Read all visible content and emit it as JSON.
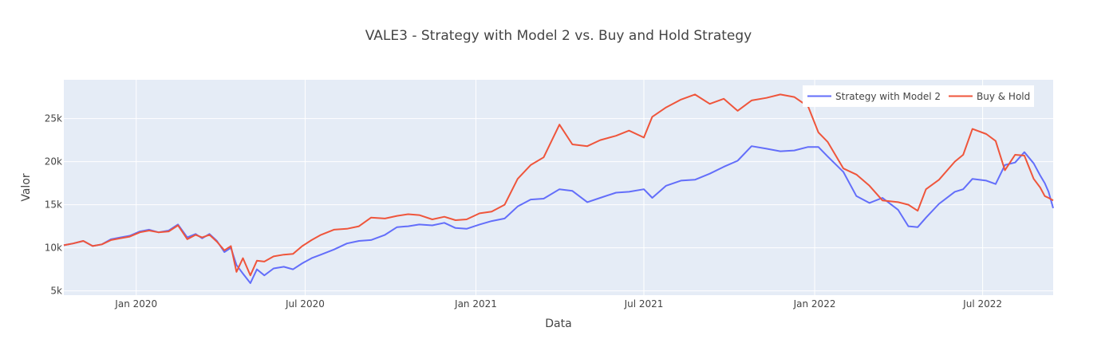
{
  "chart_data": {
    "type": "line",
    "title": "VALE3 - Strategy with Model 2 vs. Buy and Hold Strategy",
    "xlabel": "Data",
    "ylabel": "Valor",
    "x_range": [
      "2019-10-15",
      "2022-09-15"
    ],
    "ylim": [
      4500,
      29500
    ],
    "x_ticks": [
      {
        "date": "2020-01-01",
        "label": "Jan 2020"
      },
      {
        "date": "2020-07-01",
        "label": "Jul 2020"
      },
      {
        "date": "2021-01-01",
        "label": "Jan 2021"
      },
      {
        "date": "2021-07-01",
        "label": "Jul 2021"
      },
      {
        "date": "2022-01-01",
        "label": "Jan 2022"
      },
      {
        "date": "2022-07-01",
        "label": "Jul 2022"
      }
    ],
    "y_ticks": [
      {
        "value": 5000,
        "label": "5k"
      },
      {
        "value": 10000,
        "label": "10k"
      },
      {
        "value": 15000,
        "label": "15k"
      },
      {
        "value": 20000,
        "label": "20k"
      },
      {
        "value": 25000,
        "label": "25k"
      }
    ],
    "grid": true,
    "legend_position": "top-right",
    "series": [
      {
        "name": "Strategy with Model 2",
        "color": "#636efa",
        "points": [
          [
            "2019-10-15",
            10300
          ],
          [
            "2019-10-25",
            10500
          ],
          [
            "2019-11-05",
            10800
          ],
          [
            "2019-11-15",
            10200
          ],
          [
            "2019-11-25",
            10400
          ],
          [
            "2019-12-05",
            11000
          ],
          [
            "2019-12-15",
            11200
          ],
          [
            "2019-12-25",
            11400
          ],
          [
            "2020-01-05",
            11900
          ],
          [
            "2020-01-15",
            12100
          ],
          [
            "2020-01-25",
            11800
          ],
          [
            "2020-02-05",
            12000
          ],
          [
            "2020-02-15",
            12700
          ],
          [
            "2020-02-25",
            11200
          ],
          [
            "2020-03-05",
            11600
          ],
          [
            "2020-03-12",
            11100
          ],
          [
            "2020-03-20",
            11600
          ],
          [
            "2020-03-28",
            10800
          ],
          [
            "2020-04-05",
            9500
          ],
          [
            "2020-04-12",
            10000
          ],
          [
            "2020-04-18",
            8000
          ],
          [
            "2020-04-25",
            7000
          ],
          [
            "2020-05-03",
            5900
          ],
          [
            "2020-05-10",
            7500
          ],
          [
            "2020-05-18",
            6800
          ],
          [
            "2020-05-28",
            7600
          ],
          [
            "2020-06-08",
            7800
          ],
          [
            "2020-06-18",
            7500
          ],
          [
            "2020-06-28",
            8200
          ],
          [
            "2020-07-08",
            8800
          ],
          [
            "2020-07-18",
            9200
          ],
          [
            "2020-08-01",
            9800
          ],
          [
            "2020-08-15",
            10500
          ],
          [
            "2020-08-28",
            10800
          ],
          [
            "2020-09-10",
            10900
          ],
          [
            "2020-09-25",
            11500
          ],
          [
            "2020-10-08",
            12400
          ],
          [
            "2020-10-20",
            12500
          ],
          [
            "2020-11-01",
            12700
          ],
          [
            "2020-11-15",
            12600
          ],
          [
            "2020-11-28",
            12900
          ],
          [
            "2020-12-10",
            12300
          ],
          [
            "2020-12-22",
            12200
          ],
          [
            "2021-01-05",
            12700
          ],
          [
            "2021-01-18",
            13100
          ],
          [
            "2021-02-01",
            13400
          ],
          [
            "2021-02-15",
            14800
          ],
          [
            "2021-03-01",
            15600
          ],
          [
            "2021-03-15",
            15700
          ],
          [
            "2021-04-01",
            16800
          ],
          [
            "2021-04-15",
            16600
          ],
          [
            "2021-05-01",
            15300
          ],
          [
            "2021-05-15",
            15800
          ],
          [
            "2021-06-01",
            16400
          ],
          [
            "2021-06-15",
            16500
          ],
          [
            "2021-07-01",
            16800
          ],
          [
            "2021-07-10",
            15800
          ],
          [
            "2021-07-25",
            17200
          ],
          [
            "2021-08-10",
            17800
          ],
          [
            "2021-08-25",
            17900
          ],
          [
            "2021-09-10",
            18600
          ],
          [
            "2021-09-25",
            19400
          ],
          [
            "2021-10-10",
            20100
          ],
          [
            "2021-10-25",
            21800
          ],
          [
            "2021-11-10",
            21500
          ],
          [
            "2021-11-25",
            21200
          ],
          [
            "2021-12-10",
            21300
          ],
          [
            "2021-12-25",
            21700
          ],
          [
            "2022-01-05",
            21700
          ],
          [
            "2022-01-15",
            20600
          ],
          [
            "2022-02-01",
            18800
          ],
          [
            "2022-02-15",
            16000
          ],
          [
            "2022-03-01",
            15200
          ],
          [
            "2022-03-15",
            15800
          ],
          [
            "2022-04-01",
            14400
          ],
          [
            "2022-04-12",
            12500
          ],
          [
            "2022-04-22",
            12400
          ],
          [
            "2022-05-01",
            13500
          ],
          [
            "2022-05-15",
            15100
          ],
          [
            "2022-06-01",
            16500
          ],
          [
            "2022-06-10",
            16800
          ],
          [
            "2022-06-20",
            18000
          ],
          [
            "2022-07-05",
            17800
          ],
          [
            "2022-07-15",
            17400
          ],
          [
            "2022-07-25",
            19600
          ],
          [
            "2022-08-05",
            19900
          ],
          [
            "2022-08-15",
            21100
          ],
          [
            "2022-08-25",
            19800
          ],
          [
            "2022-09-01",
            18400
          ],
          [
            "2022-09-06",
            17500
          ],
          [
            "2022-09-10",
            16500
          ],
          [
            "2022-09-15",
            14600
          ]
        ]
      },
      {
        "name": "Buy & Hold",
        "color": "#ef553b",
        "points": [
          [
            "2019-10-15",
            10300
          ],
          [
            "2019-10-25",
            10500
          ],
          [
            "2019-11-05",
            10800
          ],
          [
            "2019-11-15",
            10200
          ],
          [
            "2019-11-25",
            10400
          ],
          [
            "2019-12-05",
            10900
          ],
          [
            "2019-12-15",
            11100
          ],
          [
            "2019-12-25",
            11300
          ],
          [
            "2020-01-05",
            11800
          ],
          [
            "2020-01-15",
            12000
          ],
          [
            "2020-01-25",
            11800
          ],
          [
            "2020-02-05",
            11900
          ],
          [
            "2020-02-15",
            12600
          ],
          [
            "2020-02-25",
            11000
          ],
          [
            "2020-03-05",
            11500
          ],
          [
            "2020-03-12",
            11200
          ],
          [
            "2020-03-20",
            11500
          ],
          [
            "2020-03-28",
            10700
          ],
          [
            "2020-04-05",
            9700
          ],
          [
            "2020-04-12",
            10200
          ],
          [
            "2020-04-18",
            7200
          ],
          [
            "2020-04-25",
            8800
          ],
          [
            "2020-05-03",
            6800
          ],
          [
            "2020-05-10",
            8500
          ],
          [
            "2020-05-18",
            8400
          ],
          [
            "2020-05-28",
            9000
          ],
          [
            "2020-06-08",
            9200
          ],
          [
            "2020-06-18",
            9300
          ],
          [
            "2020-06-28",
            10200
          ],
          [
            "2020-07-08",
            10900
          ],
          [
            "2020-07-18",
            11500
          ],
          [
            "2020-08-01",
            12100
          ],
          [
            "2020-08-15",
            12200
          ],
          [
            "2020-08-28",
            12500
          ],
          [
            "2020-09-10",
            13500
          ],
          [
            "2020-09-25",
            13400
          ],
          [
            "2020-10-08",
            13700
          ],
          [
            "2020-10-20",
            13900
          ],
          [
            "2020-11-01",
            13800
          ],
          [
            "2020-11-15",
            13300
          ],
          [
            "2020-11-28",
            13600
          ],
          [
            "2020-12-10",
            13200
          ],
          [
            "2020-12-22",
            13300
          ],
          [
            "2021-01-05",
            14000
          ],
          [
            "2021-01-18",
            14200
          ],
          [
            "2021-02-01",
            15000
          ],
          [
            "2021-02-15",
            18000
          ],
          [
            "2021-03-01",
            19600
          ],
          [
            "2021-03-15",
            20500
          ],
          [
            "2021-04-01",
            24300
          ],
          [
            "2021-04-15",
            22000
          ],
          [
            "2021-05-01",
            21800
          ],
          [
            "2021-05-15",
            22500
          ],
          [
            "2021-06-01",
            23000
          ],
          [
            "2021-06-15",
            23600
          ],
          [
            "2021-07-01",
            22800
          ],
          [
            "2021-07-10",
            25200
          ],
          [
            "2021-07-25",
            26300
          ],
          [
            "2021-08-10",
            27200
          ],
          [
            "2021-08-25",
            27800
          ],
          [
            "2021-09-10",
            26700
          ],
          [
            "2021-09-25",
            27300
          ],
          [
            "2021-10-10",
            25900
          ],
          [
            "2021-10-25",
            27100
          ],
          [
            "2021-11-10",
            27400
          ],
          [
            "2021-11-25",
            27800
          ],
          [
            "2021-12-10",
            27500
          ],
          [
            "2021-12-25",
            26400
          ],
          [
            "2022-01-05",
            23400
          ],
          [
            "2022-01-15",
            22300
          ],
          [
            "2022-02-01",
            19200
          ],
          [
            "2022-02-15",
            18500
          ],
          [
            "2022-03-01",
            17200
          ],
          [
            "2022-03-15",
            15500
          ],
          [
            "2022-04-01",
            15300
          ],
          [
            "2022-04-12",
            15000
          ],
          [
            "2022-04-22",
            14300
          ],
          [
            "2022-05-01",
            16800
          ],
          [
            "2022-05-15",
            17900
          ],
          [
            "2022-06-01",
            20000
          ],
          [
            "2022-06-10",
            20800
          ],
          [
            "2022-06-20",
            23800
          ],
          [
            "2022-07-05",
            23200
          ],
          [
            "2022-07-15",
            22400
          ],
          [
            "2022-07-25",
            19000
          ],
          [
            "2022-08-05",
            20800
          ],
          [
            "2022-08-15",
            20700
          ],
          [
            "2022-08-25",
            18000
          ],
          [
            "2022-09-01",
            17000
          ],
          [
            "2022-09-06",
            16000
          ],
          [
            "2022-09-10",
            15800
          ],
          [
            "2022-09-15",
            15500
          ]
        ]
      }
    ]
  }
}
